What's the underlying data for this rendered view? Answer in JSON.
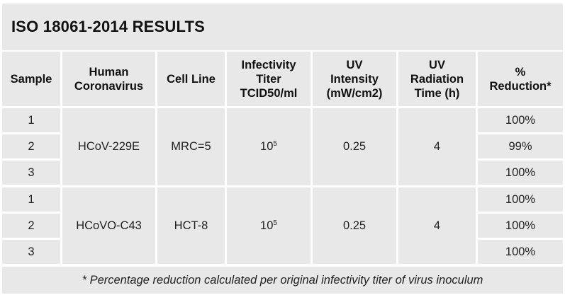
{
  "title": "ISO 18061-2014 RESULTS",
  "headers": {
    "sample": "Sample",
    "coronavirus_1": "Human",
    "coronavirus_2": "Coronavirus",
    "cell_line": "Cell Line",
    "titer_1": "Infectivity",
    "titer_2": "Titer",
    "titer_3": "TCID50/ml",
    "uv_intensity_1": "UV",
    "uv_intensity_2": "Intensity",
    "uv_intensity_3": "(mW/cm2)",
    "uv_time_1": "UV",
    "uv_time_2": "Radiation",
    "uv_time_3": "Time (h)",
    "reduction_1": "%",
    "reduction_2": "Reduction*"
  },
  "groups": [
    {
      "virus": "HCoV-229E",
      "cell_line": "MRC=5",
      "titer_base": "10",
      "titer_exp": "5",
      "uv_intensity": "0.25",
      "uv_time": "4",
      "samples": [
        {
          "sample": "1",
          "reduction": "100%"
        },
        {
          "sample": "2",
          "reduction": "99%"
        },
        {
          "sample": "3",
          "reduction": "100%"
        }
      ]
    },
    {
      "virus": "HCoVO-C43",
      "cell_line": "HCT-8",
      "titer_base": "10",
      "titer_exp": "5",
      "uv_intensity": "0.25",
      "uv_time": "4",
      "samples": [
        {
          "sample": "1",
          "reduction": "100%"
        },
        {
          "sample": "2",
          "reduction": "100%"
        },
        {
          "sample": "3",
          "reduction": "100%"
        }
      ]
    }
  ],
  "footnote": "* Percentage reduction calculated per original infectivity titer of virus inoculum"
}
